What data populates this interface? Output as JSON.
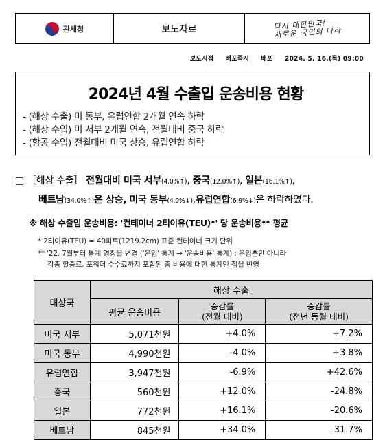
{
  "header": {
    "agency": "관세청",
    "doc_type": "보도자료",
    "slogan_line1": "다시 대한민국!",
    "slogan_line2": "새로운 국민의 나라"
  },
  "release": {
    "time_label": "보도시점",
    "time_value": "배포즉시",
    "dist_label": "배포",
    "dist_value": "2024. 5. 16.(목) 09:00"
  },
  "summary": {
    "title": "2024년 4월 수출입 운송비용 현황",
    "lines": [
      "- (해상 수출) 미 동부, 유럽연합 2개월 연속 하락",
      "- (해상 수입) 미 서부 2개월 연속, 전월대비 중국 하락",
      "- (항공 수입) 전월대비 미국 상승, 유럽연합 하락"
    ]
  },
  "main": {
    "bullet": "□",
    "heading": "［해상 수출］",
    "intro": "전월대비 미국 서부",
    "us_west_pct": "(4.0%↑)",
    "china": "중국",
    "china_pct": "(12.0%↑)",
    "japan": "일본",
    "japan_pct": "(16.1%↑)",
    "vietnam": "베트남",
    "vietnam_pct": "(34.0%↑)",
    "rise_text": "은 상승,",
    "us_east": "미국 동부",
    "us_east_pct": "(4.0%↓)",
    "eu": "유럽연합",
    "eu_pct": "(6.9%↓)",
    "fall_text": "은 하락하였다."
  },
  "note": {
    "title": "※ 해상 수출입 운송비용: '컨테이너 2티이유(TEU)*' 당 운송비용** 평균",
    "foot1": "* 2티이유(TEU) = 40피트(1219.2cm) 표준 컨테이너 크기 단위",
    "foot2a": "** '22. 7월부터 통계 명칭을 변경 ('운임' 통계 → '운송비용' 통계) : 운임뿐만 아니라",
    "foot2b": "각종 할증료, 포워더 수수료까지 포함된 총 비용에 대한 통계인 점을 반영"
  },
  "table": {
    "col_target": "대상국",
    "group_header": "해상 수출",
    "col_avg": "평균 운송비용",
    "col_mom_1": "증감률",
    "col_mom_2": "(전월 대비)",
    "col_yoy_1": "증감률",
    "col_yoy_2": "(전년 동월 대비)",
    "rows": [
      {
        "name": "미국 서부",
        "cost": "5,071천원",
        "mom": "+4.0%",
        "yoy": "+7.2%"
      },
      {
        "name": "미국 동부",
        "cost": "4,990천원",
        "mom": "-4.0%",
        "yoy": "+3.8%"
      },
      {
        "name": "유럽연합",
        "cost": "3,947천원",
        "mom": "-6.9%",
        "yoy": "+42.6%"
      },
      {
        "name": "중국",
        "cost": "560천원",
        "mom": "+12.0%",
        "yoy": "-24.8%"
      },
      {
        "name": "일본",
        "cost": "772천원",
        "mom": "+16.1%",
        "yoy": "-20.6%"
      },
      {
        "name": "베트남",
        "cost": "845천원",
        "mom": "+34.0%",
        "yoy": "-31.7%"
      }
    ]
  }
}
